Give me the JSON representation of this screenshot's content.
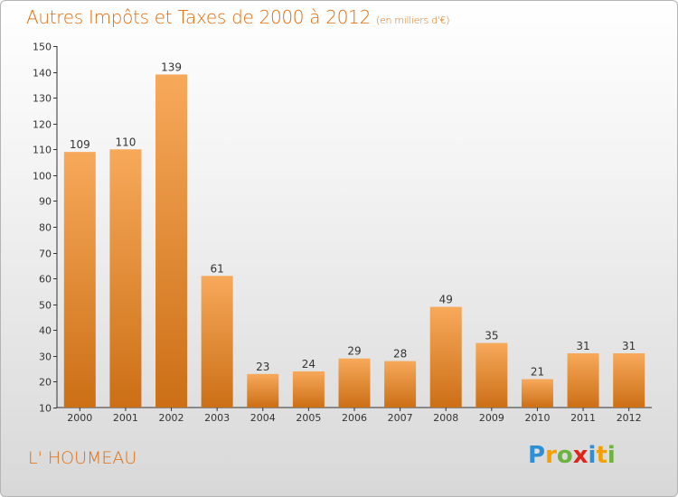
{
  "title": "Autres Impôts et Taxes de 2000 à 2012",
  "subtitle": "(en milliers d'€)",
  "location": "L' HOUMEAU",
  "logo": {
    "letters": [
      "P",
      "r",
      "o",
      "x",
      "i",
      "t",
      "i"
    ],
    "colors": [
      "#2e8fd6",
      "#f2a100",
      "#6cb33f",
      "#e2231a",
      "#2e8fd6",
      "#f2a100",
      "#6cb33f"
    ]
  },
  "colors": {
    "bar_light": "#f7a95a",
    "bar_dark": "#cc6f16",
    "title": "#e36c0a"
  },
  "chart_data": {
    "type": "bar",
    "categories": [
      "2000",
      "2001",
      "2002",
      "2003",
      "2004",
      "2005",
      "2006",
      "2007",
      "2008",
      "2009",
      "2010",
      "2011",
      "2012"
    ],
    "values": [
      109,
      110,
      139,
      61,
      23,
      24,
      29,
      28,
      49,
      35,
      21,
      31,
      31
    ],
    "ylim": [
      10,
      150
    ],
    "yticks": [
      10,
      20,
      30,
      40,
      50,
      60,
      70,
      80,
      90,
      100,
      110,
      120,
      130,
      140,
      150
    ],
    "grid": false,
    "data_labels": true
  }
}
